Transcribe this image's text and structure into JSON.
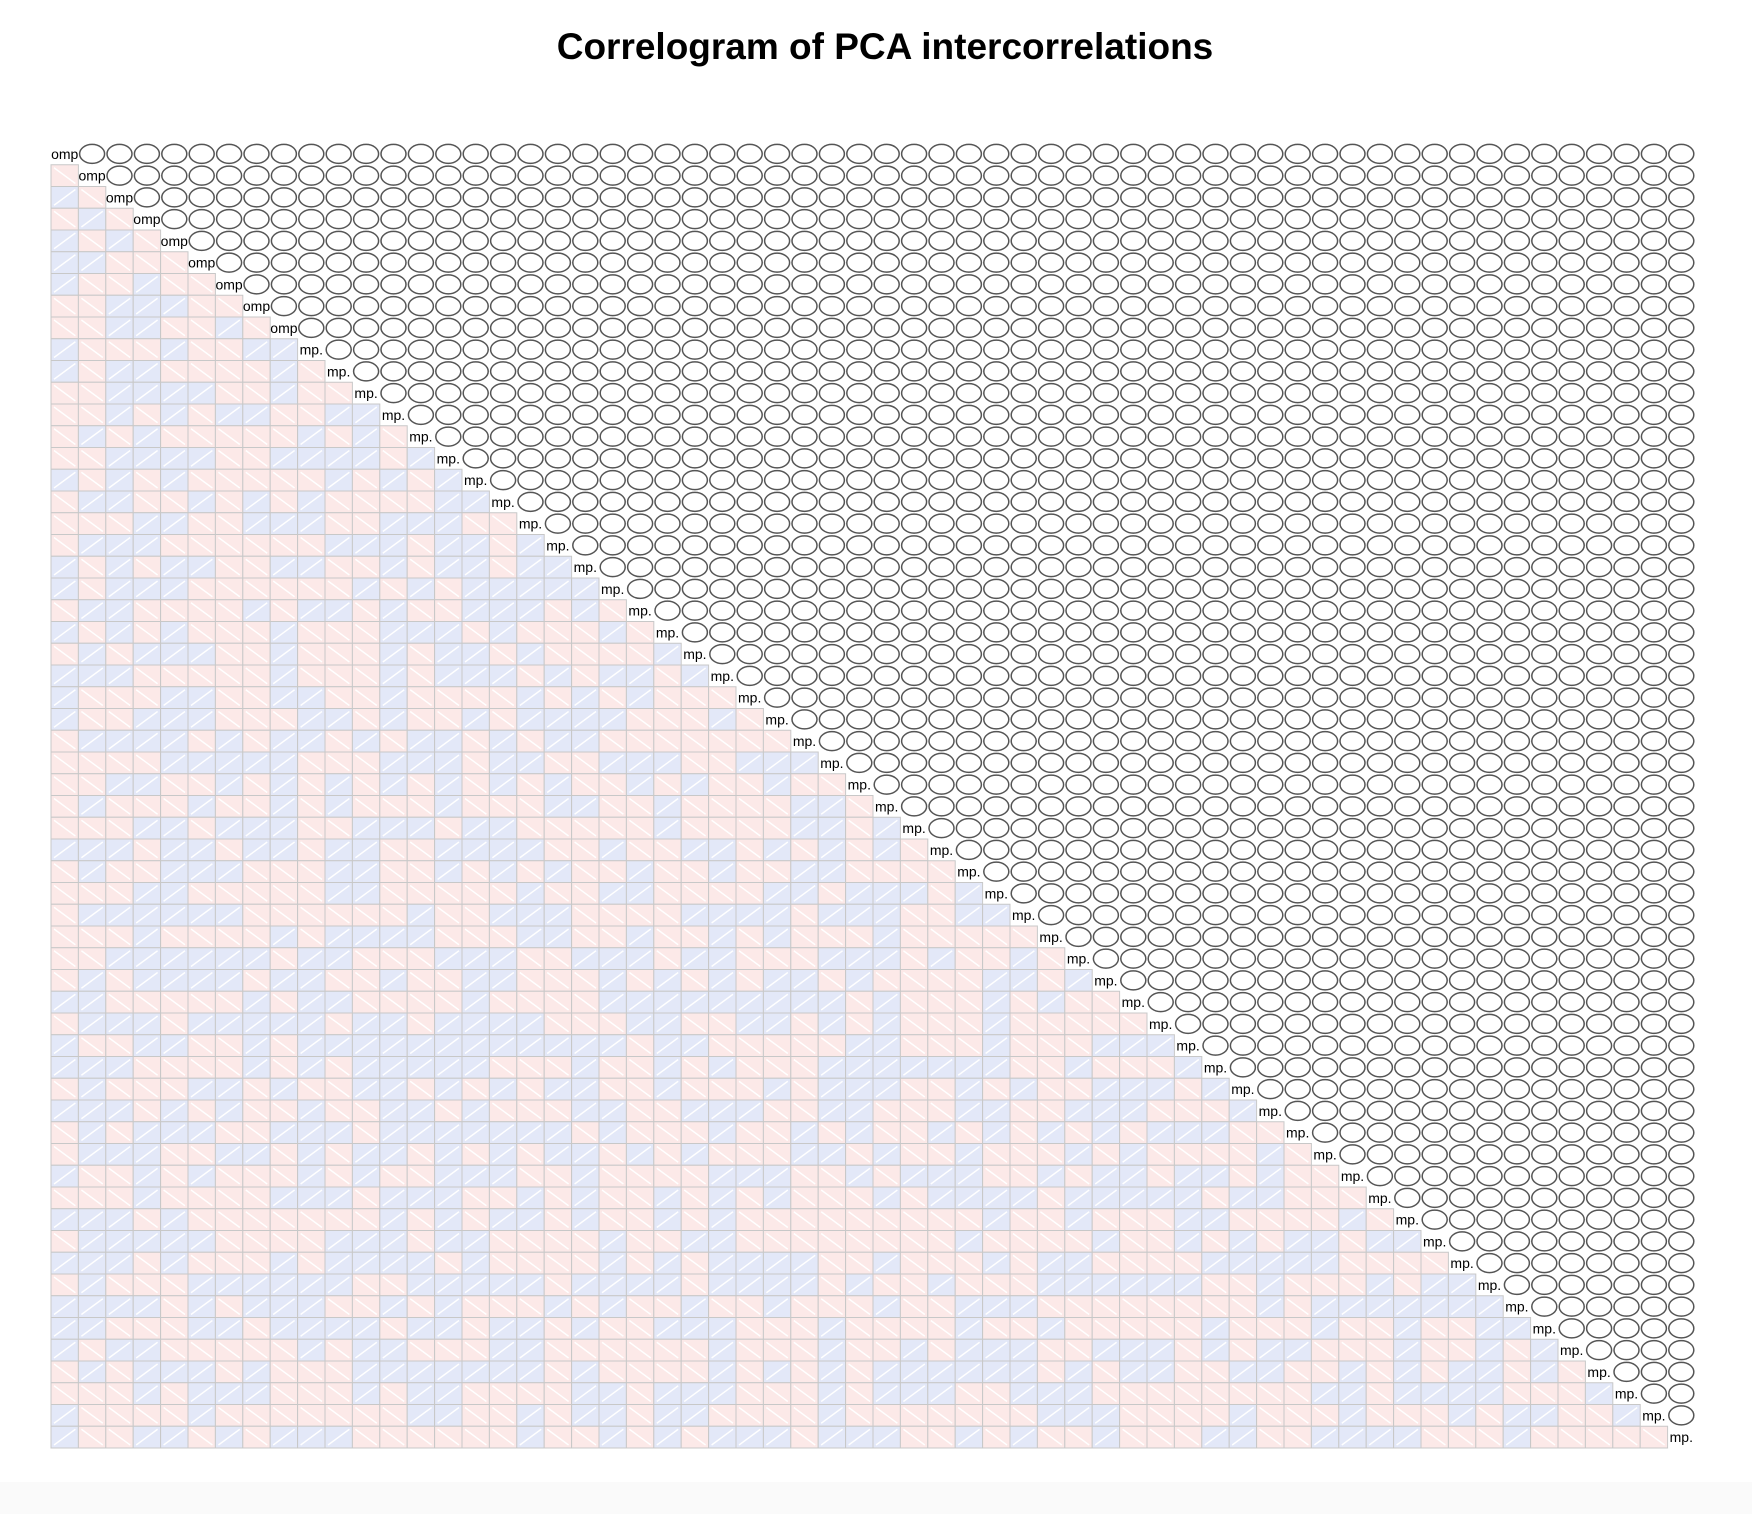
{
  "chart_data": {
    "type": "heatmap",
    "title": "Correlogram of PCA intercorrelations",
    "variables": {
      "count": 60,
      "diagonal_labels": [
        "omp",
        "omp",
        "omp",
        "omp",
        "omp",
        "omp",
        "omp",
        "omp",
        "omp",
        "mp.",
        "mp.",
        "mp.",
        "mp.",
        "mp.",
        "mp.",
        "mp.",
        "mp.",
        "mp.",
        "mp.",
        "mp.",
        "mp.",
        "mp.",
        "mp.",
        "mp.",
        "mp.",
        "mp.",
        "mp.",
        "mp.",
        "mp.",
        "mp.",
        "mp.",
        "mp.",
        "mp.",
        "mp.",
        "mp.",
        "mp.",
        "mp.",
        "mp.",
        "mp.",
        "mp.",
        "mp.",
        "mp.",
        "mp.",
        "mp.",
        "mp.",
        "mp.",
        "mp.",
        "mp.",
        "mp.",
        "mp.",
        "mp.",
        "mp.",
        "mp.",
        "mp.",
        "mp.",
        "mp.",
        "mp.",
        "mp.",
        "mp.",
        "mp."
      ]
    },
    "lower_panel": "shade",
    "upper_panel": "ellipse",
    "value_range": [
      -1,
      1
    ],
    "note_values": "off-diagonal correlations are near zero (|r| about 0.05); sign encoded by color",
    "colors": {
      "positive": "#e3e8f8",
      "negative": "#fce9e8",
      "cell_border": "#c8c8c8",
      "stripe": "#ffffff",
      "ellipse_stroke": "#555555"
    }
  }
}
